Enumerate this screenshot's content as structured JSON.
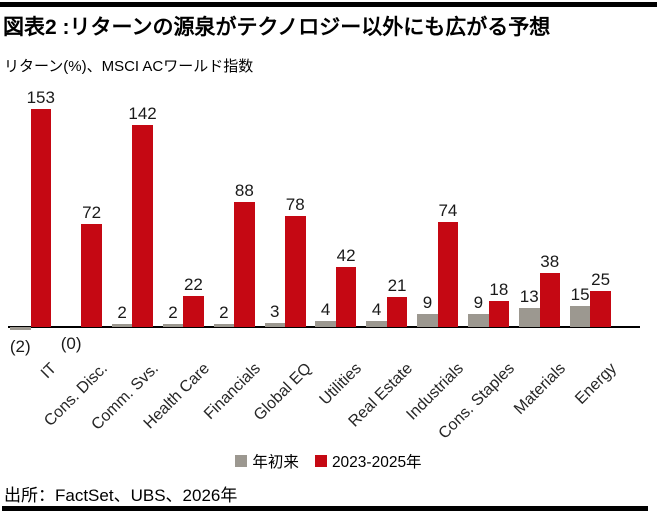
{
  "chart_data": {
    "type": "bar",
    "title": "図表2 :リターンの源泉がテクノロジー以外にも広がる予想",
    "subtitle": "リターン(%)、MSCI ACワールド指数",
    "source": "出所：FactSet、UBS、2026年",
    "categories": [
      "IT",
      "Cons. Disc.",
      "Comm. Svs.",
      "Health Care",
      "Financials",
      "Global EQ",
      "Utilities",
      "Real Estate",
      "Industrials",
      "Cons. Staples",
      "Materials",
      "Energy"
    ],
    "series": [
      {
        "key": "ytd",
        "name": "年初来",
        "color": "#9C9890",
        "values": [
          -2,
          0,
          2,
          2,
          2,
          3,
          4,
          4,
          9,
          9,
          13,
          15
        ],
        "value_labels": [
          "(2)",
          "(0)",
          "2",
          "2",
          "2",
          "3",
          "4",
          "4",
          "9",
          "9",
          "13",
          "15"
        ]
      },
      {
        "key": "forecast",
        "name": "2023-2025年",
        "color": "#C50813",
        "values": [
          153,
          72,
          142,
          22,
          88,
          78,
          42,
          21,
          74,
          18,
          38,
          25
        ],
        "value_labels": [
          "153",
          "72",
          "142",
          "22",
          "88",
          "78",
          "42",
          "21",
          "74",
          "18",
          "38",
          "25"
        ]
      }
    ],
    "ylim": [
      -5,
      160
    ],
    "grid": false,
    "legend_position": "bottom",
    "axis_color": "#000000"
  }
}
